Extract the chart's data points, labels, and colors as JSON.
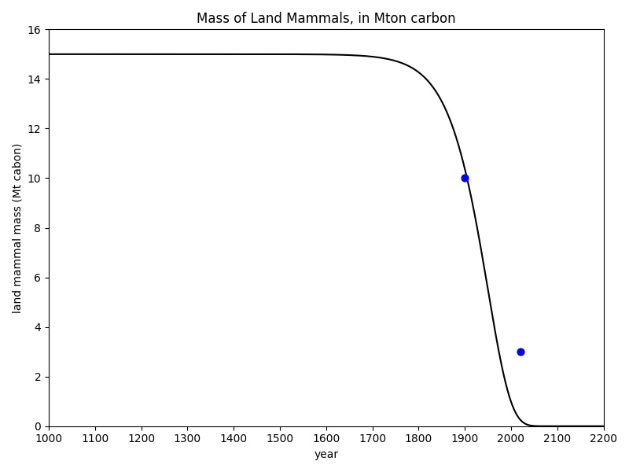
{
  "title": "Mass of Land Mammals, in Mton carbon",
  "xlabel": "year",
  "ylabel": "land mammal mass (Mt cabon)",
  "xlim": [
    1000,
    2200
  ],
  "ylim": [
    0,
    16
  ],
  "xticks": [
    1000,
    1100,
    1200,
    1300,
    1400,
    1500,
    1600,
    1700,
    1800,
    1900,
    2000,
    2100,
    2200
  ],
  "yticks": [
    0,
    2,
    4,
    6,
    8,
    10,
    12,
    14,
    16
  ],
  "data_points_x": [
    1900,
    2020
  ],
  "data_points_y": [
    10,
    3
  ],
  "point_color": "blue",
  "point_size": 40,
  "line_color": "black",
  "line_width": 1.5,
  "x_start": 1000,
  "x_end": 2200,
  "figsize": [
    8,
    6
  ],
  "dpi": 100,
  "known_points_x": [
    1000,
    1600,
    1700,
    1800,
    1900,
    2020,
    2100
  ],
  "known_points_y": [
    15.0,
    14.8,
    14.0,
    12.5,
    10.0,
    3.0,
    0.2
  ]
}
